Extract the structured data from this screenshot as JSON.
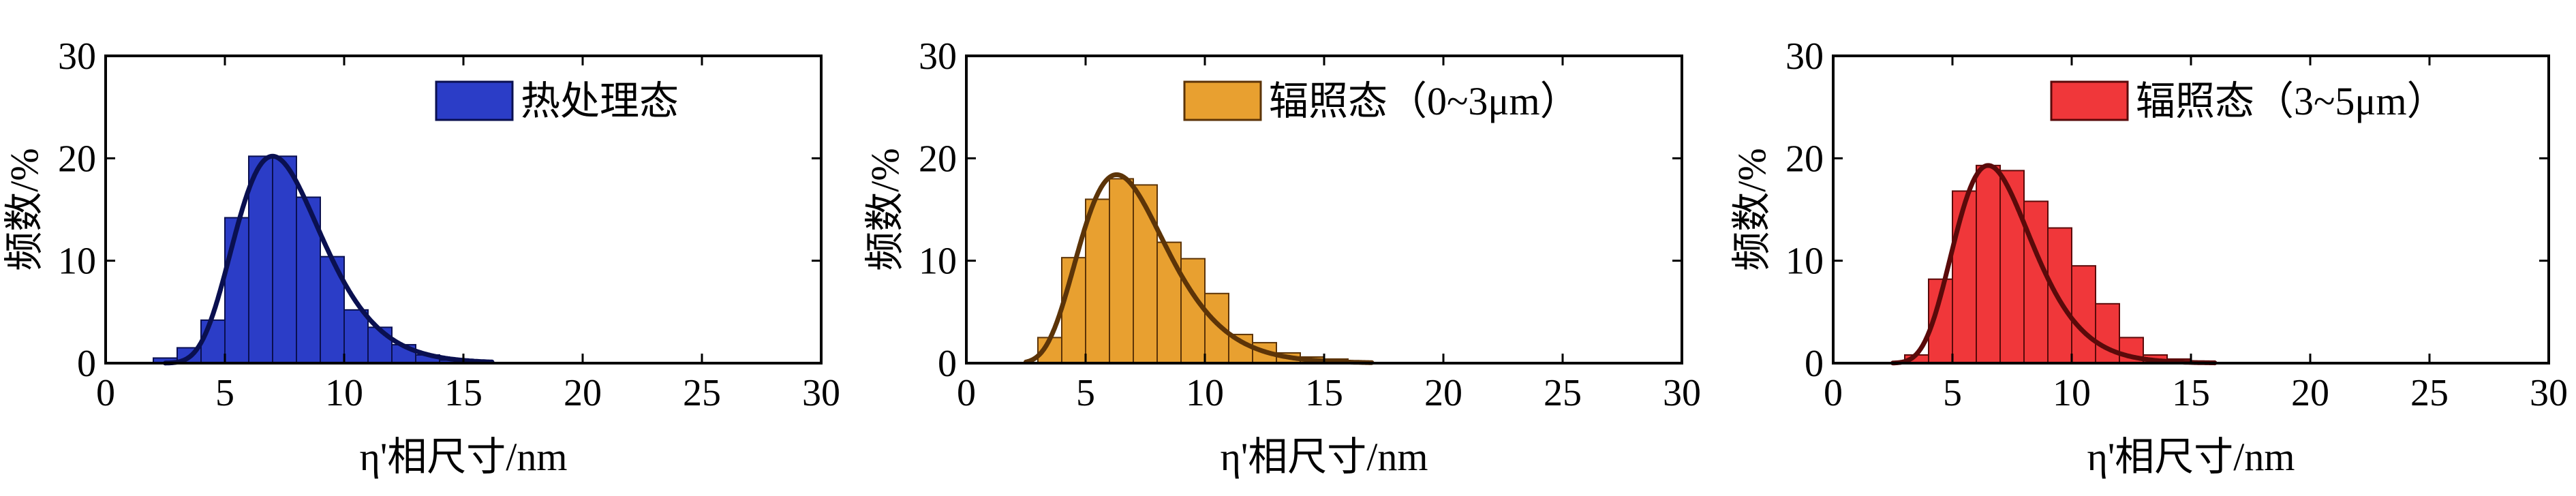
{
  "chart_data": [
    {
      "type": "bar",
      "x": [
        2.5,
        3.5,
        4.5,
        5.5,
        6.5,
        7.5,
        8.5,
        9.5,
        10.5,
        11.5,
        12.5,
        13.5,
        14.5,
        15.5
      ],
      "values": [
        0.5,
        1.5,
        4.2,
        14.2,
        20.2,
        20.2,
        16.2,
        10.4,
        5.2,
        3.5,
        1.8,
        0.8,
        0.3,
        0.2
      ],
      "bin_width": 1,
      "fit_curve": {
        "type": "lognormal",
        "peak_x": 7.0,
        "peak_y": 20.2,
        "sigma": 0.26,
        "x_range": [
          2.5,
          16.2
        ]
      },
      "legend": "热处理态",
      "legend_placement": "top-center",
      "xlabel": "η'相尺寸/nm",
      "ylabel": "频数/%",
      "xlim": [
        0,
        30
      ],
      "ylim": [
        0,
        30
      ],
      "xticks": [
        0,
        5,
        10,
        15,
        20,
        25,
        30
      ],
      "yticks": [
        0,
        10,
        20,
        30
      ],
      "bar_color": "#2b3dc7",
      "curve_color": "#0a1050"
    },
    {
      "type": "bar",
      "x": [
        3.5,
        4.5,
        5.5,
        6.5,
        7.5,
        8.5,
        9.5,
        10.5,
        11.5,
        12.5,
        13.5,
        14.5,
        15.5,
        16.5
      ],
      "values": [
        2.5,
        10.3,
        16.0,
        18.0,
        17.4,
        11.8,
        10.2,
        6.8,
        2.8,
        2.0,
        1.0,
        0.6,
        0.4,
        0.2
      ],
      "bin_width": 1,
      "fit_curve": {
        "type": "lognormal",
        "peak_x": 6.3,
        "peak_y": 18.4,
        "sigma": 0.29,
        "x_range": [
          2.5,
          17.0
        ]
      },
      "legend": "辐照态（0~3μm）",
      "legend_placement": "top-right",
      "xlabel": "η'相尺寸/nm",
      "ylabel": "频数/%",
      "xlim": [
        0,
        30
      ],
      "ylim": [
        0,
        30
      ],
      "xticks": [
        0,
        5,
        10,
        15,
        20,
        25,
        30
      ],
      "yticks": [
        0,
        10,
        20,
        30
      ],
      "bar_color": "#e8a030",
      "curve_color": "#5c3408"
    },
    {
      "type": "bar",
      "x": [
        3.5,
        4.5,
        5.5,
        6.5,
        7.5,
        8.5,
        9.5,
        10.5,
        11.5,
        12.5,
        13.5,
        14.5,
        15.5
      ],
      "values": [
        0.8,
        8.2,
        16.8,
        19.3,
        18.8,
        15.8,
        13.2,
        9.5,
        5.8,
        2.5,
        0.8,
        0.4,
        0.2
      ],
      "bin_width": 1,
      "fit_curve": {
        "type": "lognormal",
        "peak_x": 6.5,
        "peak_y": 19.3,
        "sigma": 0.25,
        "x_range": [
          2.5,
          16.0
        ]
      },
      "legend": "辐照态（3~5μm）",
      "legend_placement": "top-right",
      "xlabel": "η'相尺寸/nm",
      "ylabel": "频数/%",
      "xlim": [
        0,
        30
      ],
      "ylim": [
        0,
        30
      ],
      "xticks": [
        0,
        5,
        10,
        15,
        20,
        25,
        30
      ],
      "yticks": [
        0,
        10,
        20,
        30
      ],
      "bar_color": "#f0373a",
      "curve_color": "#5a0a0a"
    }
  ]
}
